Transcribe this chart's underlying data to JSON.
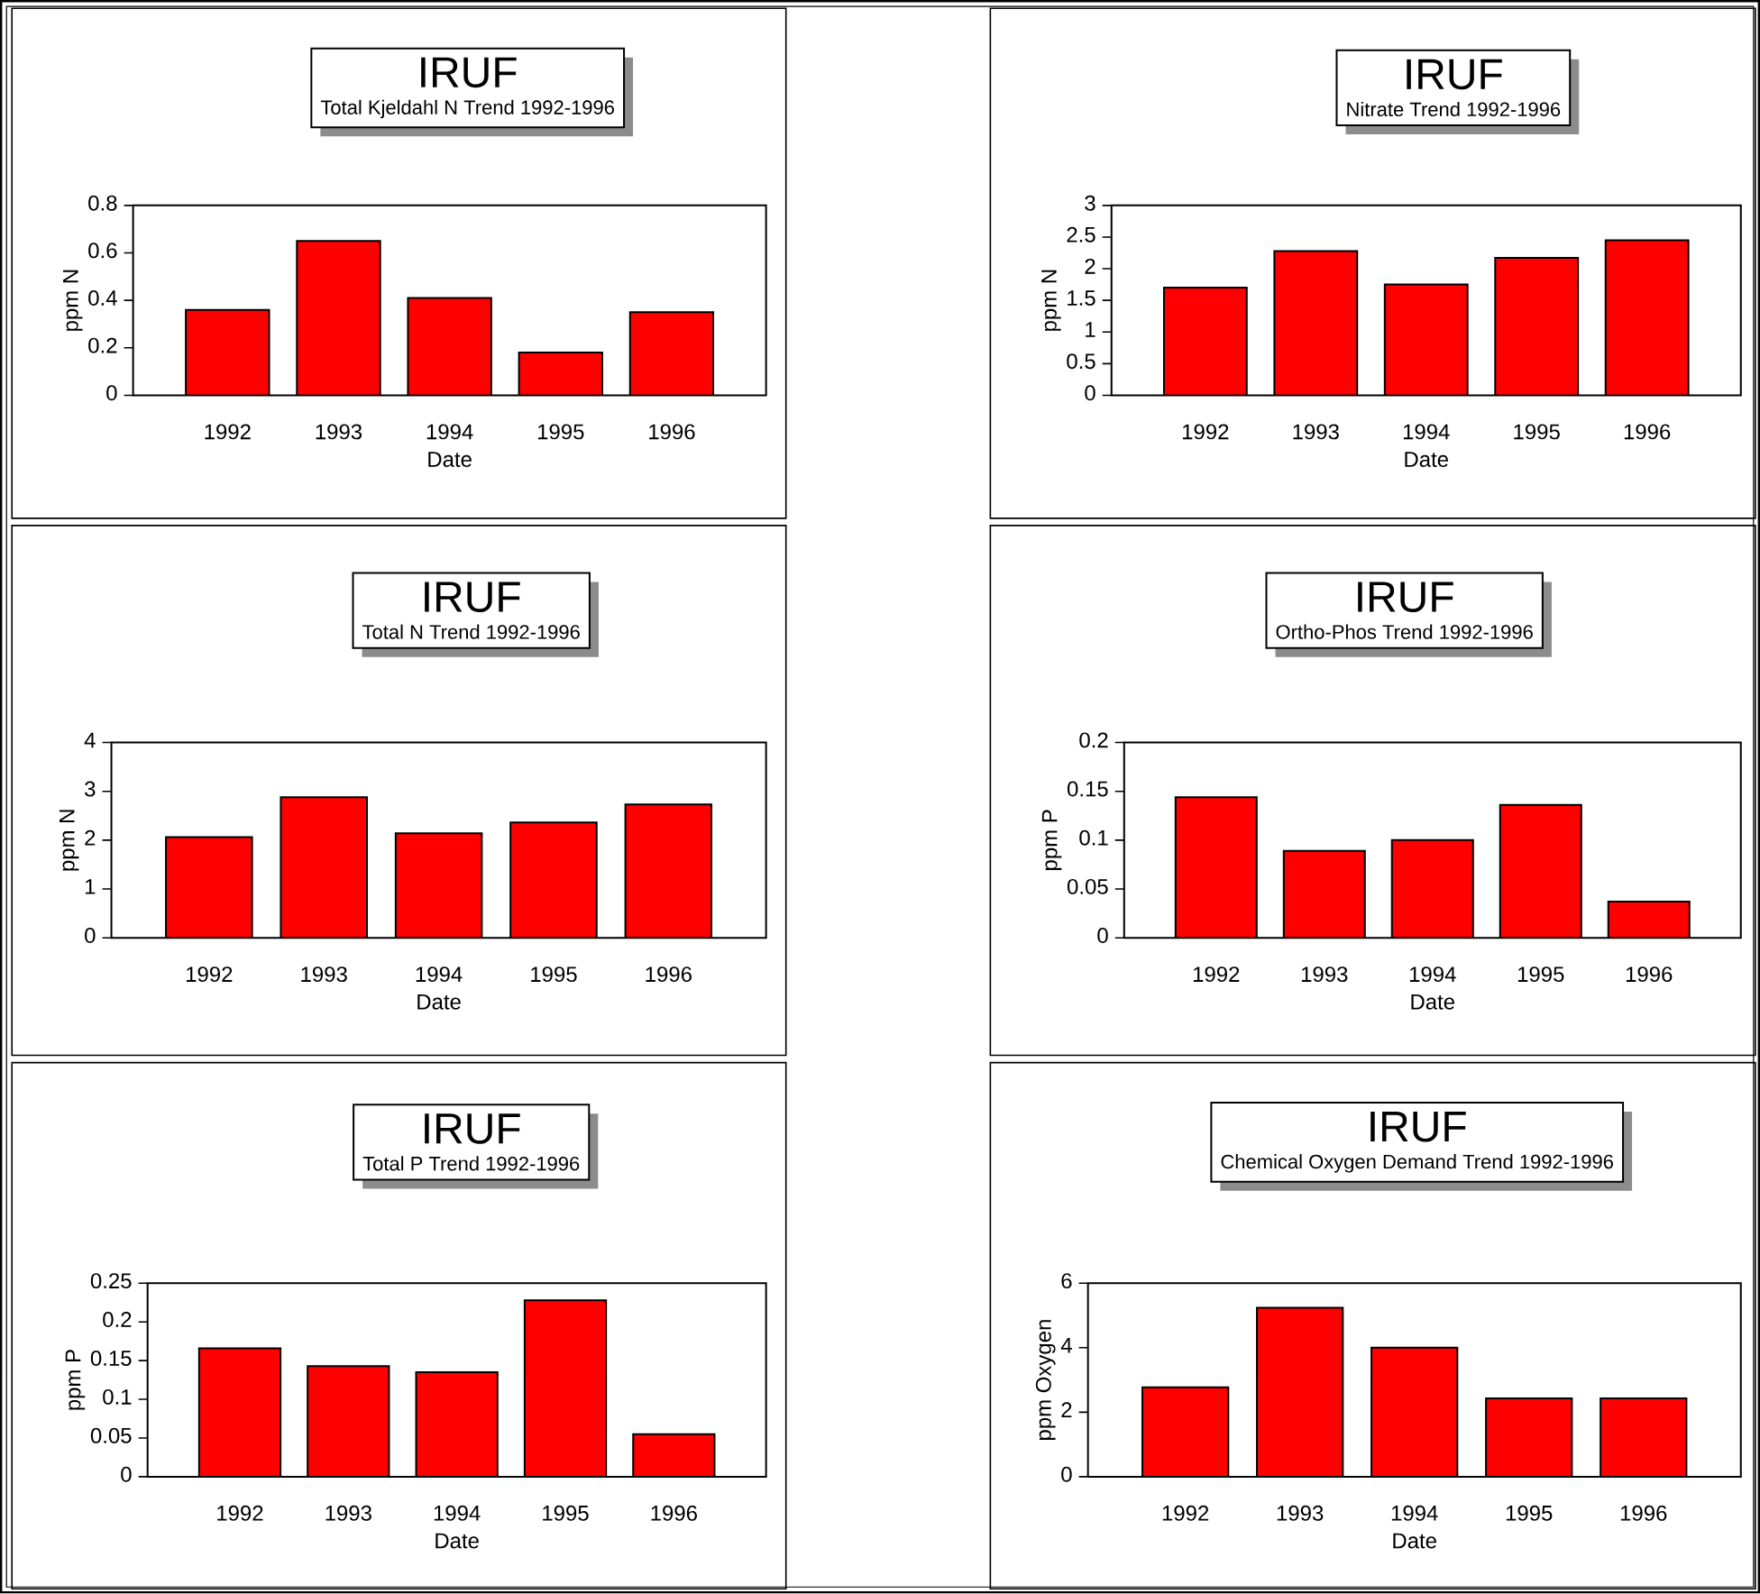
{
  "chart_data": [
    {
      "type": "bar",
      "title": "IRUF",
      "subtitle": "Total Kjeldahl N Trend 1992-1996",
      "xlabel": "Date",
      "ylabel": "ppm N",
      "categories": [
        "1992",
        "1993",
        "1994",
        "1995",
        "1996"
      ],
      "values": [
        0.36,
        0.65,
        0.41,
        0.18,
        0.35
      ],
      "color": "#ff0000",
      "ylim": [
        0,
        0.8
      ],
      "yticks": [
        0,
        0.2,
        0.4,
        0.6,
        0.8
      ]
    },
    {
      "type": "bar",
      "title": "IRUF",
      "subtitle": "Nitrate Trend 1992-1996",
      "xlabel": "Date",
      "ylabel": "ppm N",
      "categories": [
        "1992",
        "1993",
        "1994",
        "1995",
        "1996"
      ],
      "values": [
        1.7,
        2.28,
        1.75,
        2.17,
        2.45
      ],
      "color": "#ff0000",
      "ylim": [
        0,
        3
      ],
      "yticks": [
        0,
        0.5,
        1,
        1.5,
        2,
        2.5,
        3
      ]
    },
    {
      "type": "bar",
      "title": "IRUF",
      "subtitle": "Total N Trend 1992-1996",
      "xlabel": "Date",
      "ylabel": "ppm N",
      "categories": [
        "1992",
        "1993",
        "1994",
        "1995",
        "1996"
      ],
      "values": [
        2.06,
        2.88,
        2.14,
        2.36,
        2.73
      ],
      "color": "#ff0000",
      "ylim": [
        0,
        4
      ],
      "yticks": [
        0,
        1,
        2,
        3,
        4
      ]
    },
    {
      "type": "bar",
      "title": "IRUF",
      "subtitle": "Ortho-Phos Trend 1992-1996",
      "xlabel": "Date",
      "ylabel": "ppm P",
      "categories": [
        "1992",
        "1993",
        "1994",
        "1995",
        "1996"
      ],
      "values": [
        0.144,
        0.089,
        0.1,
        0.136,
        0.037
      ],
      "color": "#ff0000",
      "ylim": [
        0,
        0.2
      ],
      "yticks": [
        0,
        0.05,
        0.1,
        0.15,
        0.2
      ]
    },
    {
      "type": "bar",
      "title": "IRUF",
      "subtitle": "Total P Trend 1992-1996",
      "xlabel": "Date",
      "ylabel": "ppm P",
      "categories": [
        "1992",
        "1993",
        "1994",
        "1995",
        "1996"
      ],
      "values": [
        0.166,
        0.143,
        0.135,
        0.228,
        0.055
      ],
      "color": "#ff0000",
      "ylim": [
        0,
        0.25
      ],
      "yticks": [
        0,
        0.05,
        0.1,
        0.15,
        0.2,
        0.25
      ]
    },
    {
      "type": "bar",
      "title": "IRUF",
      "subtitle": "Chemical Oxygen Demand Trend 1992-1996",
      "xlabel": "Date",
      "ylabel": "ppm Oxygen",
      "categories": [
        "1992",
        "1993",
        "1994",
        "1995",
        "1996"
      ],
      "values": [
        2.77,
        5.24,
        4.0,
        2.43,
        2.43
      ],
      "color": "#ff0000",
      "ylim": [
        0,
        6
      ],
      "yticks": [
        0,
        2,
        4,
        6
      ]
    }
  ]
}
